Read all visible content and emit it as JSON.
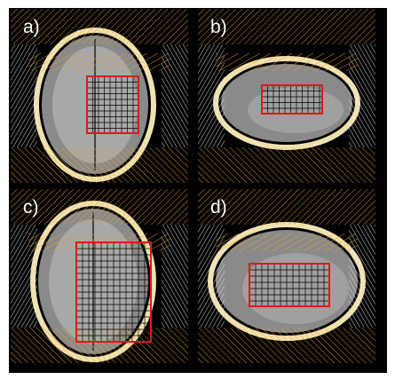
{
  "panels": [
    {
      "label": "a)",
      "view": "axial"
    },
    {
      "label": "b)",
      "view": "sagittal"
    },
    {
      "label": "c)",
      "view": "axial"
    },
    {
      "label": "d)",
      "view": "sagittal"
    }
  ],
  "colors": {
    "background": "#000000",
    "saturation_bands": "#f5a623",
    "white_bands": "#e8e8f0",
    "voxel_grid": "#000000",
    "voi_outline": "#e01818",
    "skull": "#f0e2b0"
  }
}
